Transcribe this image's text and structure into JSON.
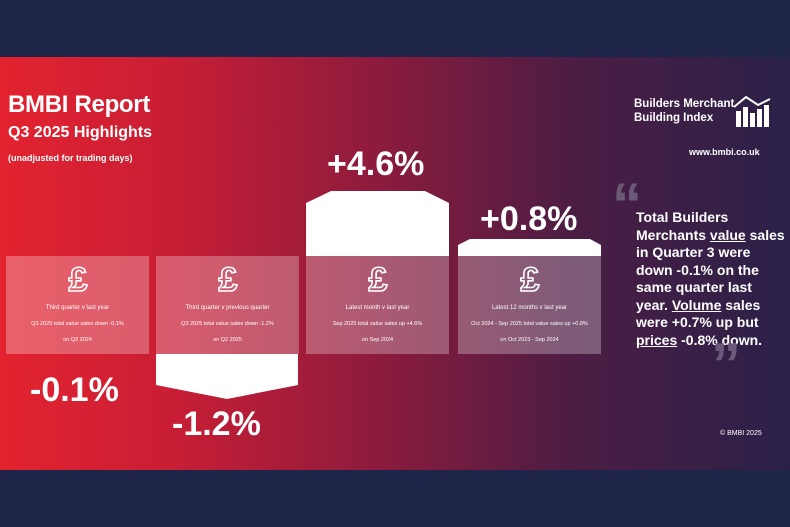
{
  "header": {
    "title": "BMBI Report",
    "subtitle": "Q3 2025 Highlights",
    "note": "(unadjusted for trading days)"
  },
  "logo": {
    "line1": "Builders Merchant",
    "line2": "Building Index",
    "website": "www.bmbi.co.uk"
  },
  "cards": [
    {
      "icon": "pound-icon",
      "label": "Third quarter v last year",
      "description": "Q3 2025 total value sales down -0.1%",
      "comparison": "on Q3 2024",
      "value": "-0.1%"
    },
    {
      "icon": "pound-icon",
      "label": "Third quarter v previous quarter",
      "description": "Q3 2025 total value sales down -1.2%",
      "comparison": "on Q2 2025",
      "value": "-1.2%"
    },
    {
      "icon": "pound-icon",
      "label": "Latest month v last year",
      "description": "Sep 2025 total value sales up +4.6%",
      "comparison": "on Sep 2024",
      "value": "+4.6%"
    },
    {
      "icon": "pound-icon",
      "label": "Latest 12 months v last year",
      "description": "Oct 2024 - Sep 2025 total value sales up +0.8%",
      "comparison": "on Oct 2023 - Sep 2024",
      "value": "+0.8%"
    }
  ],
  "quote": {
    "part1": "Total Builders Merchants ",
    "value_word": "value",
    "part2": " sales in Quarter 3 were down -0.1% on the same quarter last year. ",
    "volume_word": "Volume",
    "part3": " sales were +0.7% up but ",
    "prices_word": "prices",
    "part4": " -0.8% down."
  },
  "copyright": "© BMBI 2025",
  "colors": {
    "band": "#1e2548",
    "gradient_start": "#e3232f",
    "gradient_end": "#2a2148",
    "card_fill": "rgba(255,255,255,0.28)",
    "quote_mark": "#6a5a78"
  }
}
